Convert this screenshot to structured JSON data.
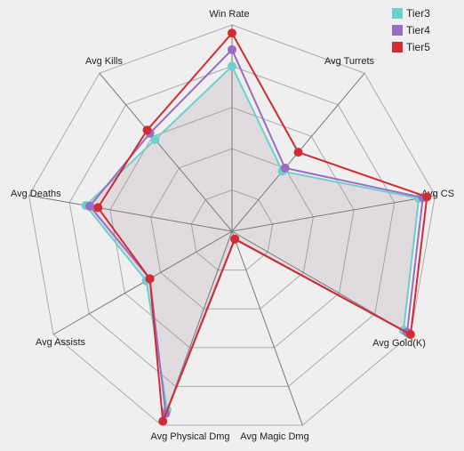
{
  "chart_data": {
    "type": "radar",
    "axes": [
      "Win Rate",
      "Avg Turrets",
      "Avg CS",
      "Avg Gold(K)",
      "Avg Magic Dmg",
      "Avg Physical Dmg",
      "Avg Assists",
      "Avg Deaths",
      "Avg Kills"
    ],
    "rlim": [
      0,
      5
    ],
    "grid": true,
    "legend_position": "top-right",
    "series": [
      {
        "name": "Tier3",
        "color": "#6ecfcc",
        "values": [
          4.0,
          1.9,
          4.6,
          4.8,
          0.2,
          4.6,
          2.4,
          3.6,
          2.9
        ]
      },
      {
        "name": "Tier4",
        "color": "#9b6cc3",
        "values": [
          4.4,
          2.0,
          4.7,
          4.9,
          0.2,
          4.7,
          2.3,
          3.5,
          3.1
        ]
      },
      {
        "name": "Tier5",
        "color": "#cf2c33",
        "values": [
          4.8,
          2.5,
          4.8,
          5.0,
          0.2,
          4.9,
          2.3,
          3.3,
          3.2
        ]
      }
    ]
  }
}
